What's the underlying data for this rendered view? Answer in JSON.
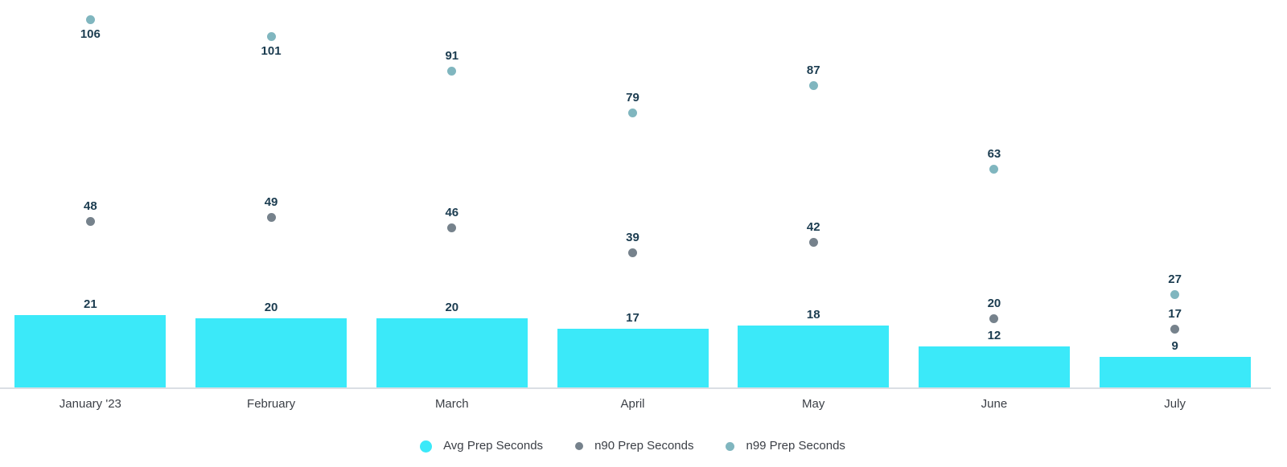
{
  "chart_data": {
    "type": "bar",
    "title": "",
    "categories": [
      "January '23",
      "February",
      "March",
      "April",
      "May",
      "June",
      "July"
    ],
    "series": [
      {
        "name": "Avg Prep Seconds",
        "render": "bar",
        "color": "#3BE9F9",
        "values": [
          21,
          20,
          20,
          17,
          18,
          12,
          9
        ]
      },
      {
        "name": "n90 Prep Seconds",
        "render": "scatter",
        "color": "#76828C",
        "values": [
          48,
          49,
          46,
          39,
          42,
          20,
          17
        ]
      },
      {
        "name": "n99 Prep Seconds",
        "render": "scatter",
        "color": "#80B6BF",
        "values": [
          106,
          101,
          91,
          79,
          87,
          63,
          27
        ]
      }
    ],
    "xlabel": "",
    "ylabel": "",
    "ylim": [
      0,
      111
    ],
    "grid": false,
    "y_axis_visible": false,
    "data_labels_visible": true,
    "legend_position": "bottom",
    "colors": {
      "value_label": "#1B3C50",
      "axis_label": "#3B3F46",
      "legend_label": "#3B3F46",
      "baseline": "#DADEE4",
      "background": "#FFFFFF"
    }
  },
  "legend": {
    "items": [
      {
        "label": "Avg Prep Seconds",
        "marker": "circle",
        "marker_color": "#3BE9F9",
        "marker_size": 15
      },
      {
        "label": "n90 Prep Seconds",
        "marker": "circle",
        "marker_color": "#76828C",
        "marker_size": 10
      },
      {
        "label": "n99 Prep Seconds",
        "marker": "circle",
        "marker_color": "#80B6BF",
        "marker_size": 11
      }
    ]
  }
}
